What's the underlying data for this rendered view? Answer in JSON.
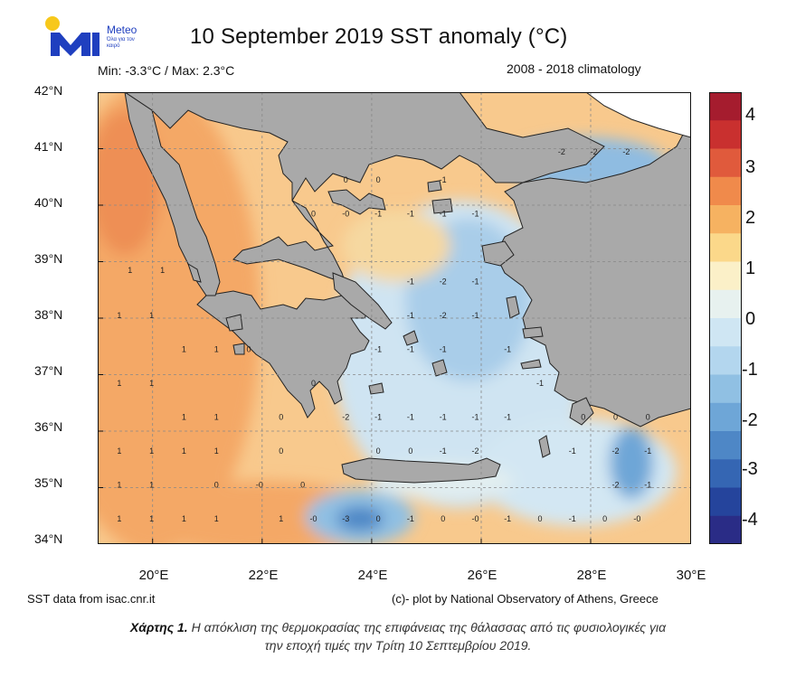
{
  "header": {
    "logo_text": "Meteo",
    "logo_sub": "Όλα για τον καιρό",
    "title": "10 September 2019 SST anomaly (°C)",
    "minmax": "Min: -3.3°C / Max: 2.3°C",
    "climatology": "2008 - 2018 climatology"
  },
  "axes": {
    "lat_labels": [
      "42°N",
      "41°N",
      "40°N",
      "39°N",
      "38°N",
      "37°N",
      "36°N",
      "35°N",
      "34°N"
    ],
    "lon_labels": [
      "20°E",
      "22°E",
      "24°E",
      "26°E",
      "28°E",
      "30°E"
    ]
  },
  "colorbar": {
    "labels": [
      "4",
      "3",
      "2",
      "1",
      "0",
      "-1",
      "-2",
      "-3",
      "-4"
    ],
    "colors": [
      "#a51c2e",
      "#c9302f",
      "#e05a3c",
      "#f08a4b",
      "#f6b261",
      "#fbd88a",
      "#fbf0c8",
      "#e7f1ef",
      "#cfe6f3",
      "#b3d6ee",
      "#90c0e3",
      "#6ea6d7",
      "#4e87c6",
      "#3566b3",
      "#25449c",
      "#2a2c86"
    ]
  },
  "map": {
    "land_color": "#a9a9a9",
    "values": [
      {
        "v": "1",
        "lon": 19.6,
        "lat": 38.8
      },
      {
        "v": "1",
        "lon": 20.2,
        "lat": 38.8
      },
      {
        "v": "1",
        "lon": 19.4,
        "lat": 38.0
      },
      {
        "v": "1",
        "lon": 20.0,
        "lat": 38.0
      },
      {
        "v": "1",
        "lon": 20.6,
        "lat": 37.4
      },
      {
        "v": "1",
        "lon": 21.2,
        "lat": 37.4
      },
      {
        "v": "0",
        "lon": 21.8,
        "lat": 37.4
      },
      {
        "v": "1",
        "lon": 19.4,
        "lat": 36.8
      },
      {
        "v": "1",
        "lon": 20.0,
        "lat": 36.8
      },
      {
        "v": "1",
        "lon": 20.6,
        "lat": 36.2
      },
      {
        "v": "1",
        "lon": 21.2,
        "lat": 36.2
      },
      {
        "v": "1",
        "lon": 19.4,
        "lat": 35.6
      },
      {
        "v": "1",
        "lon": 20.0,
        "lat": 35.6
      },
      {
        "v": "1",
        "lon": 20.6,
        "lat": 35.6
      },
      {
        "v": "1",
        "lon": 21.2,
        "lat": 35.6
      },
      {
        "v": "0",
        "lon": 22.4,
        "lat": 35.6
      },
      {
        "v": "1",
        "lon": 19.4,
        "lat": 35.0
      },
      {
        "v": "1",
        "lon": 20.0,
        "lat": 35.0
      },
      {
        "v": "0",
        "lon": 21.2,
        "lat": 35.0
      },
      {
        "v": "-0",
        "lon": 22.0,
        "lat": 35.0
      },
      {
        "v": "0",
        "lon": 22.8,
        "lat": 35.0
      },
      {
        "v": "1",
        "lon": 19.4,
        "lat": 34.4
      },
      {
        "v": "1",
        "lon": 20.0,
        "lat": 34.4
      },
      {
        "v": "1",
        "lon": 20.6,
        "lat": 34.4
      },
      {
        "v": "1",
        "lon": 21.2,
        "lat": 34.4
      },
      {
        "v": "1",
        "lon": 22.4,
        "lat": 34.4
      },
      {
        "v": "-0",
        "lon": 23.0,
        "lat": 34.4
      },
      {
        "v": "-3",
        "lon": 23.6,
        "lat": 34.4
      },
      {
        "v": "0",
        "lon": 24.2,
        "lat": 34.4
      },
      {
        "v": "-1",
        "lon": 24.8,
        "lat": 34.4
      },
      {
        "v": "0",
        "lon": 25.4,
        "lat": 34.4
      },
      {
        "v": "-0",
        "lon": 26.0,
        "lat": 34.4
      },
      {
        "v": "-1",
        "lon": 26.6,
        "lat": 34.4
      },
      {
        "v": "0",
        "lon": 27.2,
        "lat": 34.4
      },
      {
        "v": "-1",
        "lon": 27.8,
        "lat": 34.4
      },
      {
        "v": "0",
        "lon": 28.4,
        "lat": 34.4
      },
      {
        "v": "-0",
        "lon": 29.0,
        "lat": 34.4
      },
      {
        "v": "0",
        "lon": 24.2,
        "lat": 35.6
      },
      {
        "v": "0",
        "lon": 24.8,
        "lat": 35.6
      },
      {
        "v": "-1",
        "lon": 25.4,
        "lat": 35.6
      },
      {
        "v": "-2",
        "lon": 26.0,
        "lat": 35.6
      },
      {
        "v": "-1",
        "lon": 27.8,
        "lat": 35.6
      },
      {
        "v": "-2",
        "lon": 28.6,
        "lat": 35.6
      },
      {
        "v": "-1",
        "lon": 29.2,
        "lat": 35.6
      },
      {
        "v": "-2",
        "lon": 28.6,
        "lat": 35.0
      },
      {
        "v": "-1",
        "lon": 29.2,
        "lat": 35.0
      },
      {
        "v": "0",
        "lon": 28.6,
        "lat": 36.2
      },
      {
        "v": "0",
        "lon": 29.2,
        "lat": 36.2
      },
      {
        "v": "-2",
        "lon": 23.6,
        "lat": 36.2
      },
      {
        "v": "-1",
        "lon": 24.2,
        "lat": 36.2
      },
      {
        "v": "-1",
        "lon": 24.8,
        "lat": 36.2
      },
      {
        "v": "-1",
        "lon": 25.4,
        "lat": 36.2
      },
      {
        "v": "-1",
        "lon": 26.0,
        "lat": 36.2
      },
      {
        "v": "-1",
        "lon": 26.6,
        "lat": 36.2
      },
      {
        "v": "-1",
        "lon": 24.2,
        "lat": 37.4
      },
      {
        "v": "-1",
        "lon": 24.8,
        "lat": 37.4
      },
      {
        "v": "-1",
        "lon": 25.4,
        "lat": 37.4
      },
      {
        "v": "-1",
        "lon": 24.8,
        "lat": 38.0
      },
      {
        "v": "-2",
        "lon": 25.4,
        "lat": 38.0
      },
      {
        "v": "-1",
        "lon": 26.0,
        "lat": 38.0
      },
      {
        "v": "-1",
        "lon": 24.8,
        "lat": 38.6
      },
      {
        "v": "-2",
        "lon": 25.4,
        "lat": 38.6
      },
      {
        "v": "-1",
        "lon": 26.0,
        "lat": 38.6
      },
      {
        "v": "0",
        "lon": 23.0,
        "lat": 39.8
      },
      {
        "v": "-0",
        "lon": 23.6,
        "lat": 39.8
      },
      {
        "v": "-1",
        "lon": 24.2,
        "lat": 39.8
      },
      {
        "v": "-1",
        "lon": 24.8,
        "lat": 39.8
      },
      {
        "v": "-1",
        "lon": 25.4,
        "lat": 39.8
      },
      {
        "v": "-1",
        "lon": 26.0,
        "lat": 39.8
      },
      {
        "v": "0",
        "lon": 23.6,
        "lat": 40.4
      },
      {
        "v": "0",
        "lon": 24.2,
        "lat": 40.4
      },
      {
        "v": "-1",
        "lon": 25.4,
        "lat": 40.4
      },
      {
        "v": "-2",
        "lon": 27.6,
        "lat": 40.9
      },
      {
        "v": "-2",
        "lon": 28.2,
        "lat": 40.9
      },
      {
        "v": "-2",
        "lon": 28.8,
        "lat": 40.9
      },
      {
        "v": "0",
        "lon": 23.0,
        "lat": 36.8
      },
      {
        "v": "-1",
        "lon": 26.6,
        "lat": 37.4
      },
      {
        "v": "-1",
        "lon": 27.2,
        "lat": 36.8
      },
      {
        "v": "0",
        "lon": 28.0,
        "lat": 36.2
      },
      {
        "v": "0",
        "lon": 22.4,
        "lat": 36.2
      }
    ]
  },
  "footer": {
    "source": "SST data from isac.cnr.it",
    "credit": "(c)- plot by National Observatory of Athens, Greece",
    "caption_bold": "Χάρτης 1.",
    "caption_line1": " Η απόκλιση της θερμοκρασίας της επιφάνειας της θάλασσας από τις φυσιολογικές για",
    "caption_line2": "την εποχή τιμές την Τρίτη 10 Σεπτεμβρίου 2019."
  }
}
